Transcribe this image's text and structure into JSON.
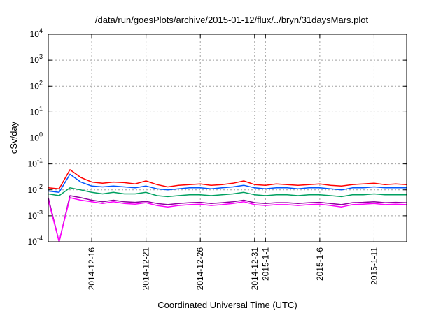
{
  "chart_data": {
    "type": "line",
    "title": "/data/run/goesPlots/archive/2015-01-12/flux/../bryn/31daysMars.plot",
    "xlabel": "Coordinated Universal Time (UTC)",
    "ylabel": "cSv/day",
    "yscale": "log",
    "ylim": [
      0.0001,
      10000
    ],
    "xlim": [
      "2014-12-12",
      "2015-01-14"
    ],
    "y_ticks": [
      {
        "value": 0.0001,
        "base": "10",
        "exp": "-4"
      },
      {
        "value": 0.001,
        "base": "10",
        "exp": "-3"
      },
      {
        "value": 0.01,
        "base": "10",
        "exp": "-2"
      },
      {
        "value": 0.1,
        "base": "10",
        "exp": "-1"
      },
      {
        "value": 1,
        "base": "10",
        "exp": "0"
      },
      {
        "value": 10,
        "base": "10",
        "exp": "1"
      },
      {
        "value": 100,
        "base": "10",
        "exp": "2"
      },
      {
        "value": 1000,
        "base": "10",
        "exp": "3"
      },
      {
        "value": 10000,
        "base": "10",
        "exp": "4"
      }
    ],
    "x_ticks": [
      {
        "value": "2014-12-16",
        "label": "2014-12-16"
      },
      {
        "value": "2014-12-21",
        "label": "2014-12-21"
      },
      {
        "value": "2014-12-26",
        "label": "2014-12-26"
      },
      {
        "value": "2014-12-31",
        "label": "2014-12-31"
      },
      {
        "value": "2015-01-01",
        "label": "2015-1-1"
      },
      {
        "value": "2015-01-06",
        "label": "2015-1-6"
      },
      {
        "value": "2015-01-11",
        "label": "2015-1-11"
      }
    ],
    "grid": true,
    "series": [
      {
        "color": "#ff0000",
        "x": [
          "2014-12-12",
          "2014-12-13",
          "2014-12-14",
          "2014-12-15",
          "2014-12-16",
          "2014-12-17",
          "2014-12-18",
          "2014-12-19",
          "2014-12-20",
          "2014-12-21",
          "2014-12-22",
          "2014-12-23",
          "2014-12-24",
          "2014-12-25",
          "2014-12-26",
          "2014-12-27",
          "2014-12-28",
          "2014-12-29",
          "2014-12-30",
          "2014-12-31",
          "2015-01-01",
          "2015-01-02",
          "2015-01-03",
          "2015-01-04",
          "2015-01-05",
          "2015-01-06",
          "2015-01-07",
          "2015-01-08",
          "2015-01-09",
          "2015-01-10",
          "2015-01-11",
          "2015-01-12",
          "2015-01-13",
          "2015-01-14"
        ],
        "values": [
          0.012,
          0.011,
          0.06,
          0.03,
          0.02,
          0.018,
          0.02,
          0.019,
          0.017,
          0.022,
          0.016,
          0.013,
          0.015,
          0.016,
          0.017,
          0.015,
          0.016,
          0.018,
          0.022,
          0.016,
          0.015,
          0.017,
          0.016,
          0.015,
          0.016,
          0.017,
          0.015,
          0.014,
          0.016,
          0.017,
          0.018,
          0.016,
          0.017,
          0.016
        ]
      },
      {
        "color": "#0055ff",
        "x": [
          "2014-12-12",
          "2014-12-13",
          "2014-12-14",
          "2014-12-15",
          "2014-12-16",
          "2014-12-17",
          "2014-12-18",
          "2014-12-19",
          "2014-12-20",
          "2014-12-21",
          "2014-12-22",
          "2014-12-23",
          "2014-12-24",
          "2014-12-25",
          "2014-12-26",
          "2014-12-27",
          "2014-12-28",
          "2014-12-29",
          "2014-12-30",
          "2014-12-31",
          "2015-01-01",
          "2015-01-02",
          "2015-01-03",
          "2015-01-04",
          "2015-01-05",
          "2015-01-06",
          "2015-01-07",
          "2015-01-08",
          "2015-01-09",
          "2015-01-10",
          "2015-01-11",
          "2015-01-12",
          "2015-01-13",
          "2015-01-14"
        ],
        "values": [
          0.009,
          0.008,
          0.04,
          0.02,
          0.014,
          0.013,
          0.014,
          0.013,
          0.012,
          0.014,
          0.011,
          0.01,
          0.011,
          0.012,
          0.012,
          0.011,
          0.012,
          0.013,
          0.015,
          0.012,
          0.011,
          0.012,
          0.012,
          0.011,
          0.012,
          0.012,
          0.011,
          0.01,
          0.012,
          0.012,
          0.013,
          0.012,
          0.012,
          0.012
        ]
      },
      {
        "color": "#00a060",
        "x": [
          "2014-12-12",
          "2014-12-13",
          "2014-12-14",
          "2014-12-15",
          "2014-12-16",
          "2014-12-17",
          "2014-12-18",
          "2014-12-19",
          "2014-12-20",
          "2014-12-21",
          "2014-12-22",
          "2014-12-23",
          "2014-12-24",
          "2014-12-25",
          "2014-12-26",
          "2014-12-27",
          "2014-12-28",
          "2014-12-29",
          "2014-12-30",
          "2014-12-31",
          "2015-01-01",
          "2015-01-02",
          "2015-01-03",
          "2015-01-04",
          "2015-01-05",
          "2015-01-06",
          "2015-01-07",
          "2015-01-08",
          "2015-01-09",
          "2015-01-10",
          "2015-01-11",
          "2015-01-12",
          "2015-01-13",
          "2015-01-14"
        ],
        "values": [
          0.007,
          0.006,
          0.012,
          0.01,
          0.008,
          0.007,
          0.008,
          0.007,
          0.007,
          0.008,
          0.006,
          0.0055,
          0.006,
          0.0065,
          0.0065,
          0.006,
          0.0065,
          0.007,
          0.008,
          0.0065,
          0.006,
          0.0065,
          0.0065,
          0.006,
          0.0065,
          0.0065,
          0.006,
          0.0055,
          0.0065,
          0.0065,
          0.007,
          0.0065,
          0.0065,
          0.0065
        ]
      },
      {
        "color": "#9000a0",
        "x": [
          "2014-12-12",
          "2014-12-13",
          "2014-12-14",
          "2014-12-15",
          "2014-12-16",
          "2014-12-17",
          "2014-12-18",
          "2014-12-19",
          "2014-12-20",
          "2014-12-21",
          "2014-12-22",
          "2014-12-23",
          "2014-12-24",
          "2014-12-25",
          "2014-12-26",
          "2014-12-27",
          "2014-12-28",
          "2014-12-29",
          "2014-12-30",
          "2014-12-31",
          "2015-01-01",
          "2015-01-02",
          "2015-01-03",
          "2015-01-04",
          "2015-01-05",
          "2015-01-06",
          "2015-01-07",
          "2015-01-08",
          "2015-01-09",
          "2015-01-10",
          "2015-01-11",
          "2015-01-12",
          "2015-01-13",
          "2015-01-14"
        ],
        "values": [
          0.005,
          0.0001,
          0.006,
          0.005,
          0.004,
          0.0035,
          0.004,
          0.0035,
          0.0033,
          0.0036,
          0.003,
          0.0027,
          0.003,
          0.0032,
          0.0033,
          0.003,
          0.0032,
          0.0035,
          0.004,
          0.0032,
          0.003,
          0.0032,
          0.0032,
          0.003,
          0.0032,
          0.0033,
          0.003,
          0.0027,
          0.0032,
          0.0033,
          0.0035,
          0.0032,
          0.0033,
          0.0032
        ]
      },
      {
        "color": "#ff00ff",
        "x": [
          "2014-12-12",
          "2014-12-13",
          "2014-12-14",
          "2014-12-15",
          "2014-12-16",
          "2014-12-17",
          "2014-12-18",
          "2014-12-19",
          "2014-12-20",
          "2014-12-21",
          "2014-12-22",
          "2014-12-23",
          "2014-12-24",
          "2014-12-25",
          "2014-12-26",
          "2014-12-27",
          "2014-12-28",
          "2014-12-29",
          "2014-12-30",
          "2014-12-31",
          "2015-01-01",
          "2015-01-02",
          "2015-01-03",
          "2015-01-04",
          "2015-01-05",
          "2015-01-06",
          "2015-01-07",
          "2015-01-08",
          "2015-01-09",
          "2015-01-10",
          "2015-01-11",
          "2015-01-12",
          "2015-01-13",
          "2015-01-14"
        ],
        "values": [
          0.004,
          0.0001,
          0.005,
          0.004,
          0.0035,
          0.003,
          0.0035,
          0.003,
          0.0028,
          0.0032,
          0.0025,
          0.0022,
          0.0025,
          0.0027,
          0.0028,
          0.0025,
          0.0027,
          0.003,
          0.0035,
          0.0027,
          0.0025,
          0.0027,
          0.0027,
          0.0025,
          0.0027,
          0.0028,
          0.0025,
          0.0022,
          0.0027,
          0.0028,
          0.003,
          0.0027,
          0.0028,
          0.0027
        ]
      }
    ]
  }
}
